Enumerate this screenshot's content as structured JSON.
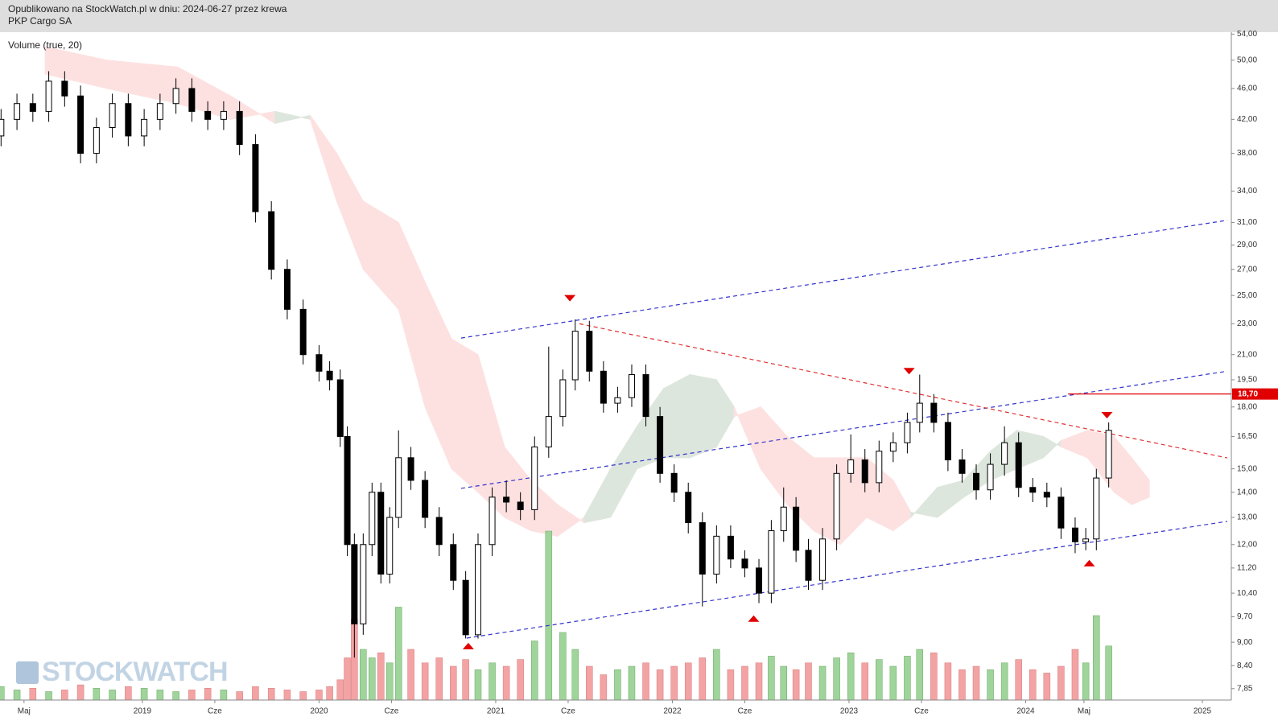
{
  "chart_data": {
    "type": "candlestick",
    "header": [
      "Opublikowano na StockWatch.pl w dniu: 2024-06-27 przez krewa",
      "PKP Cargo SA"
    ],
    "indicator_label": "Volume (true, 20)",
    "watermark": "STOCKWATCH",
    "log_scale": true,
    "xlim": [
      2018.194,
      2025.164
    ],
    "ylim": [
      7.59,
      54.3
    ],
    "xticks": [
      {
        "value": 2018.33,
        "label": "Maj"
      },
      2019,
      {
        "value": 2019.41,
        "label": "Cze"
      },
      2020,
      {
        "value": 2020.41,
        "label": "Cze"
      },
      2021,
      {
        "value": 2021.41,
        "label": "Cze"
      },
      2022,
      {
        "value": 2022.41,
        "label": "Cze"
      },
      2023,
      {
        "value": 2023.41,
        "label": "Cze"
      },
      2024,
      {
        "value": 2024.33,
        "label": "Maj"
      },
      2025
    ],
    "yticks": [
      {
        "value": 54,
        "label": "54,00"
      },
      {
        "value": 50,
        "label": "50,00"
      },
      {
        "value": 46,
        "label": "46,00"
      },
      {
        "value": 42,
        "label": "42,00"
      },
      {
        "value": 38,
        "label": "38,00"
      },
      {
        "value": 34,
        "label": "34,00"
      },
      {
        "value": 31,
        "label": "31,00"
      },
      {
        "value": 29,
        "label": "29,00"
      },
      {
        "value": 27,
        "label": "27,00"
      },
      {
        "value": 25,
        "label": "25,00"
      },
      {
        "value": 23,
        "label": "23,00"
      },
      {
        "value": 21,
        "label": "21,00"
      },
      {
        "value": 19.5,
        "label": "19,50"
      },
      {
        "value": 18,
        "label": "18,00"
      },
      {
        "value": 16.5,
        "label": "16,50"
      },
      {
        "value": 15,
        "label": "15,00"
      },
      {
        "value": 14,
        "label": "14,00"
      },
      {
        "value": 13,
        "label": "13,00"
      },
      {
        "value": 12,
        "label": "12,00"
      },
      {
        "value": 11.2,
        "label": "11,20"
      },
      {
        "value": 10.4,
        "label": "10,40"
      },
      {
        "value": 9.7,
        "label": "9,70"
      },
      {
        "value": 9,
        "label": "9,00"
      },
      {
        "value": 8.4,
        "label": "8,40"
      },
      {
        "value": 7.85,
        "label": "7,85"
      }
    ],
    "x": [
      2018.2,
      2018.29,
      2018.38,
      2018.47,
      2018.56,
      2018.65,
      2018.74,
      2018.83,
      2018.92,
      2019.01,
      2019.1,
      2019.19,
      2019.28,
      2019.37,
      2019.46,
      2019.55,
      2019.64,
      2019.73,
      2019.82,
      2019.91,
      2020.0,
      2020.06,
      2020.12,
      2020.16,
      2020.2,
      2020.25,
      2020.3,
      2020.35,
      2020.4,
      2020.45,
      2020.52,
      2020.6,
      2020.68,
      2020.76,
      2020.83,
      2020.9,
      2020.98,
      2021.06,
      2021.14,
      2021.22,
      2021.3,
      2021.38,
      2021.45,
      2021.53,
      2021.61,
      2021.69,
      2021.77,
      2021.85,
      2021.93,
      2022.01,
      2022.09,
      2022.17,
      2022.25,
      2022.33,
      2022.41,
      2022.49,
      2022.56,
      2022.63,
      2022.7,
      2022.77,
      2022.85,
      2022.93,
      2023.01,
      2023.09,
      2023.17,
      2023.25,
      2023.33,
      2023.4,
      2023.48,
      2023.56,
      2023.64,
      2023.72,
      2023.8,
      2023.88,
      2023.96,
      2024.04,
      2024.12,
      2024.2,
      2024.28,
      2024.34,
      2024.4,
      2024.47
    ],
    "open": [
      40,
      42,
      44,
      43,
      47,
      45,
      38,
      41,
      44,
      40,
      42,
      44,
      46,
      43,
      42,
      43,
      39,
      32,
      27,
      24,
      21,
      20,
      19.5,
      16.5,
      12,
      9.5,
      12,
      14,
      11,
      13,
      15.5,
      14.5,
      13,
      12,
      10.8,
      9.2,
      12,
      13.8,
      13.6,
      13.3,
      16,
      17.5,
      19.5,
      22.5,
      20,
      18.2,
      18.5,
      19.8,
      17.5,
      14.8,
      14,
      12.8,
      11,
      12.3,
      11.5,
      11.2,
      10.4,
      12.5,
      13.4,
      11.8,
      10.8,
      12.2,
      14.8,
      15.4,
      14.4,
      15.8,
      16.2,
      17.2,
      18.2,
      17.2,
      15.4,
      14.8,
      14.1,
      15.2,
      16.2,
      14.2,
      14,
      13.8,
      12.6,
      12.1,
      12.2,
      14.6
    ],
    "high": [
      43.3,
      45.3,
      45.3,
      48.4,
      48.4,
      46.4,
      42.2,
      45.3,
      45.3,
      43.3,
      45.3,
      47.4,
      47.4,
      44.3,
      44.3,
      44.3,
      40.2,
      33,
      27.8,
      24.7,
      21.6,
      20.6,
      20.1,
      17,
      12.4,
      12.4,
      14.4,
      14.4,
      13.4,
      16.8,
      16,
      14.9,
      13.4,
      12.4,
      11.1,
      12.4,
      14.2,
      14.5,
      14,
      16.5,
      21.5,
      20.1,
      23.3,
      23.2,
      20.6,
      19.1,
      20.4,
      20.4,
      18,
      15.2,
      14.4,
      13.2,
      12.7,
      12.7,
      11.8,
      11.5,
      12.9,
      14.2,
      13.8,
      12.2,
      12.6,
      15.2,
      16.6,
      15.9,
      16.3,
      16.7,
      17.7,
      19.8,
      18.7,
      17.7,
      15.9,
      15.2,
      15.7,
      17,
      16.7,
      14.6,
      14.4,
      14.2,
      13,
      12.6,
      15,
      17.2
    ],
    "low": [
      38.8,
      40.7,
      41.7,
      41.7,
      43.6,
      36.9,
      36.9,
      39.8,
      38.8,
      38.8,
      40.7,
      42.7,
      41.7,
      40.7,
      40.7,
      37.8,
      31,
      26.2,
      23.3,
      20.4,
      19.4,
      18.9,
      16,
      11.6,
      8.6,
      9.2,
      11.6,
      10.7,
      10.7,
      12.6,
      14.1,
      12.6,
      11.6,
      10.5,
      9.1,
      9.1,
      11.6,
      13.2,
      12.9,
      12.9,
      15.5,
      17,
      18.9,
      19.4,
      17.7,
      17.7,
      18,
      17,
      14.4,
      13.6,
      12.4,
      10,
      10.7,
      11.2,
      10.9,
      10.1,
      10.1,
      12.1,
      11.4,
      10.5,
      10.5,
      11.8,
      14.4,
      14,
      14,
      15.3,
      15.7,
      16.7,
      16.7,
      14.9,
      14.4,
      13.7,
      13.7,
      14.7,
      13.8,
      13.6,
      13.4,
      12.2,
      11.7,
      11.8,
      11.8,
      14.2
    ],
    "close": [
      42,
      44,
      43,
      47,
      45,
      38,
      41,
      44,
      40,
      42,
      44,
      46,
      43,
      42,
      43,
      39,
      32,
      27,
      24,
      21,
      20,
      19.5,
      16.5,
      12,
      9.5,
      12,
      14,
      11,
      13,
      15.5,
      14.5,
      13,
      12,
      10.8,
      9.2,
      12,
      13.8,
      13.6,
      13.3,
      16,
      17.5,
      19.5,
      22.5,
      20,
      18.2,
      18.5,
      19.8,
      17.5,
      14.8,
      14,
      12.8,
      11,
      12.3,
      11.5,
      11.2,
      10.4,
      12.5,
      13.4,
      11.8,
      10.8,
      12.2,
      14.8,
      15.4,
      14.4,
      15.8,
      16.2,
      17.2,
      18.2,
      17.2,
      15.4,
      14.8,
      14.1,
      15.2,
      16.2,
      14.2,
      14,
      13.8,
      12.6,
      12.1,
      12.2,
      14.6,
      16.8
    ],
    "volume": [
      8,
      6,
      7,
      5,
      6,
      9,
      7,
      6,
      8,
      7,
      6,
      5,
      6,
      7,
      6,
      5,
      8,
      7,
      6,
      5,
      6,
      8,
      12,
      25,
      48,
      30,
      25,
      28,
      22,
      55,
      30,
      22,
      25,
      20,
      24,
      18,
      22,
      20,
      24,
      35,
      100,
      40,
      30,
      20,
      15,
      18,
      20,
      22,
      18,
      20,
      22,
      25,
      30,
      18,
      20,
      22,
      26,
      20,
      18,
      22,
      20,
      25,
      28,
      22,
      24,
      20,
      26,
      30,
      28,
      22,
      18,
      20,
      18,
      22,
      24,
      18,
      16,
      20,
      30,
      22,
      50,
      32
    ],
    "cloud": {
      "x": [
        2018.45,
        2018.8,
        2019.2,
        2019.5,
        2019.75,
        2019.95,
        2020.1,
        2020.25,
        2020.45,
        2020.6,
        2020.75,
        2020.9,
        2021.05,
        2021.2,
        2021.35,
        2021.5,
        2021.65,
        2021.8,
        2021.95,
        2022.1,
        2022.25,
        2022.35,
        2022.5,
        2022.65,
        2022.8,
        2022.95,
        2023.1,
        2023.25,
        2023.35,
        2023.5,
        2023.65,
        2023.8,
        2023.95,
        2024.1,
        2024.2,
        2024.35,
        2024.5,
        2024.6,
        2024.7
      ],
      "span_a": [
        48,
        46,
        44,
        42,
        43,
        42,
        33,
        27,
        24,
        18,
        15,
        14,
        13,
        12.5,
        12.3,
        13,
        15,
        17,
        19,
        19.8,
        19.5,
        18,
        15,
        13.5,
        12.5,
        12,
        13,
        12.5,
        13,
        14.2,
        14.5,
        15.8,
        16.8,
        16.5,
        16,
        15.5,
        14,
        13.5,
        13.8
      ],
      "span_b": [
        52,
        50,
        49,
        45,
        41.5,
        42.5,
        38,
        33,
        31,
        26,
        22,
        21,
        16,
        14.5,
        13.5,
        12.8,
        13,
        15,
        15.5,
        15.5,
        16,
        17.5,
        18,
        16.5,
        15.5,
        15.5,
        15.5,
        14.5,
        13.2,
        13,
        13.8,
        14.5,
        15,
        15.5,
        16.3,
        16.8,
        16.5,
        15.5,
        14.5
      ]
    },
    "trendlines": [
      {
        "color": "#3333cc",
        "x": [
          2020.804,
          2025.141
        ],
        "y": [
          22.05,
          31.2
        ]
      },
      {
        "color": "#3333cc",
        "x": [
          2020.804,
          2025.141
        ],
        "y": [
          14.16,
          20.0
        ]
      },
      {
        "color": "#3333cc",
        "x": [
          2020.836,
          2025.141
        ],
        "y": [
          9.11,
          12.85
        ]
      },
      {
        "color": "#e03030",
        "x": [
          2021.474,
          2025.141
        ],
        "y": [
          23.0,
          15.49
        ]
      }
    ],
    "level": {
      "value": 18.7,
      "label": "18,70",
      "start": 2024.24,
      "color": "#e00000"
    },
    "markers": {
      "x": [
        2021.42,
        2020.845,
        2023.34,
        2022.46,
        2024.46,
        2024.36
      ],
      "y": [
        24.8,
        8.9,
        20.0,
        9.65,
        17.57,
        11.36
      ],
      "direction": [
        "down",
        "up",
        "down",
        "up",
        "down",
        "up"
      ]
    },
    "colors": {
      "up_volume": "#9fd49a",
      "down_volume": "#f3a3a3",
      "bull_cloud": "#dde6dd",
      "bear_cloud": "#fde1e1",
      "candle": "#000000"
    }
  }
}
